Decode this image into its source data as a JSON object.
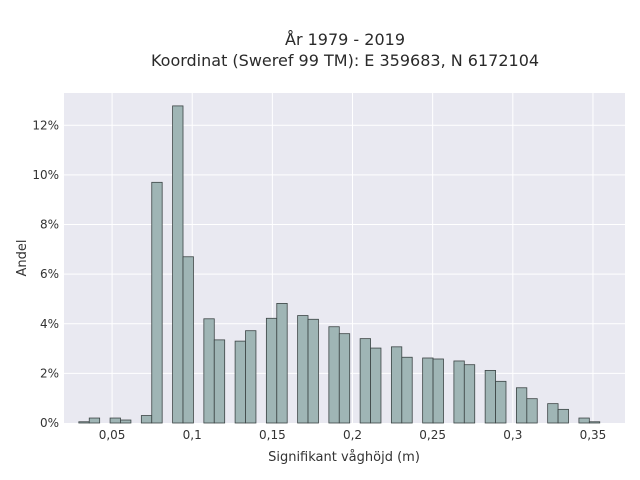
{
  "colors": {
    "plot_background": "#e9e9f1",
    "grid": "#ffffff",
    "bar_fill": "#9fb5b5",
    "bar_stroke": "#3b4444",
    "text": "#333333"
  },
  "chart_data": {
    "type": "bar",
    "title_line1": "År 1979 - 2019",
    "title_line2": "Koordinat (Sweref 99 TM): E 359683, N 6172104",
    "xlabel": "Signifikant våghöjd (m)",
    "ylabel": "Andel",
    "xlim": [
      0.02,
      0.37
    ],
    "ylim": [
      0,
      13.3
    ],
    "bar_width": 0.0065,
    "grid": true,
    "x_ticks": [
      {
        "value": 0.05,
        "label": "0,05"
      },
      {
        "value": 0.1,
        "label": "0,1"
      },
      {
        "value": 0.15,
        "label": "0,15"
      },
      {
        "value": 0.2,
        "label": "0,2"
      },
      {
        "value": 0.25,
        "label": "0,25"
      },
      {
        "value": 0.3,
        "label": "0,3"
      },
      {
        "value": 0.35,
        "label": "0,35"
      }
    ],
    "y_ticks": [
      {
        "value": 0,
        "label": "0%"
      },
      {
        "value": 2,
        "label": "2%"
      },
      {
        "value": 4,
        "label": "4%"
      },
      {
        "value": 6,
        "label": "6%"
      },
      {
        "value": 8,
        "label": "8%"
      },
      {
        "value": 10,
        "label": "10%"
      },
      {
        "value": 12,
        "label": "12%"
      }
    ],
    "bars": [
      {
        "x": 0.0325,
        "y": 0.05
      },
      {
        "x": 0.039,
        "y": 0.2
      },
      {
        "x": 0.052,
        "y": 0.2
      },
      {
        "x": 0.0585,
        "y": 0.12
      },
      {
        "x": 0.0715,
        "y": 0.3
      },
      {
        "x": 0.078,
        "y": 9.7
      },
      {
        "x": 0.091,
        "y": 12.78
      },
      {
        "x": 0.0975,
        "y": 6.7
      },
      {
        "x": 0.1105,
        "y": 4.2
      },
      {
        "x": 0.117,
        "y": 3.35
      },
      {
        "x": 0.13,
        "y": 3.3
      },
      {
        "x": 0.1365,
        "y": 3.72
      },
      {
        "x": 0.1495,
        "y": 4.22
      },
      {
        "x": 0.156,
        "y": 4.82
      },
      {
        "x": 0.169,
        "y": 4.33
      },
      {
        "x": 0.1755,
        "y": 4.18
      },
      {
        "x": 0.1885,
        "y": 3.88
      },
      {
        "x": 0.195,
        "y": 3.6
      },
      {
        "x": 0.208,
        "y": 3.4
      },
      {
        "x": 0.2145,
        "y": 3.02
      },
      {
        "x": 0.2275,
        "y": 3.07
      },
      {
        "x": 0.234,
        "y": 2.65
      },
      {
        "x": 0.247,
        "y": 2.62
      },
      {
        "x": 0.2535,
        "y": 2.58
      },
      {
        "x": 0.2665,
        "y": 2.5
      },
      {
        "x": 0.273,
        "y": 2.35
      },
      {
        "x": 0.286,
        "y": 2.12
      },
      {
        "x": 0.2925,
        "y": 1.68
      },
      {
        "x": 0.3055,
        "y": 1.42
      },
      {
        "x": 0.312,
        "y": 0.98
      },
      {
        "x": 0.325,
        "y": 0.78
      },
      {
        "x": 0.3315,
        "y": 0.55
      },
      {
        "x": 0.3445,
        "y": 0.2
      },
      {
        "x": 0.351,
        "y": 0.05
      }
    ]
  }
}
